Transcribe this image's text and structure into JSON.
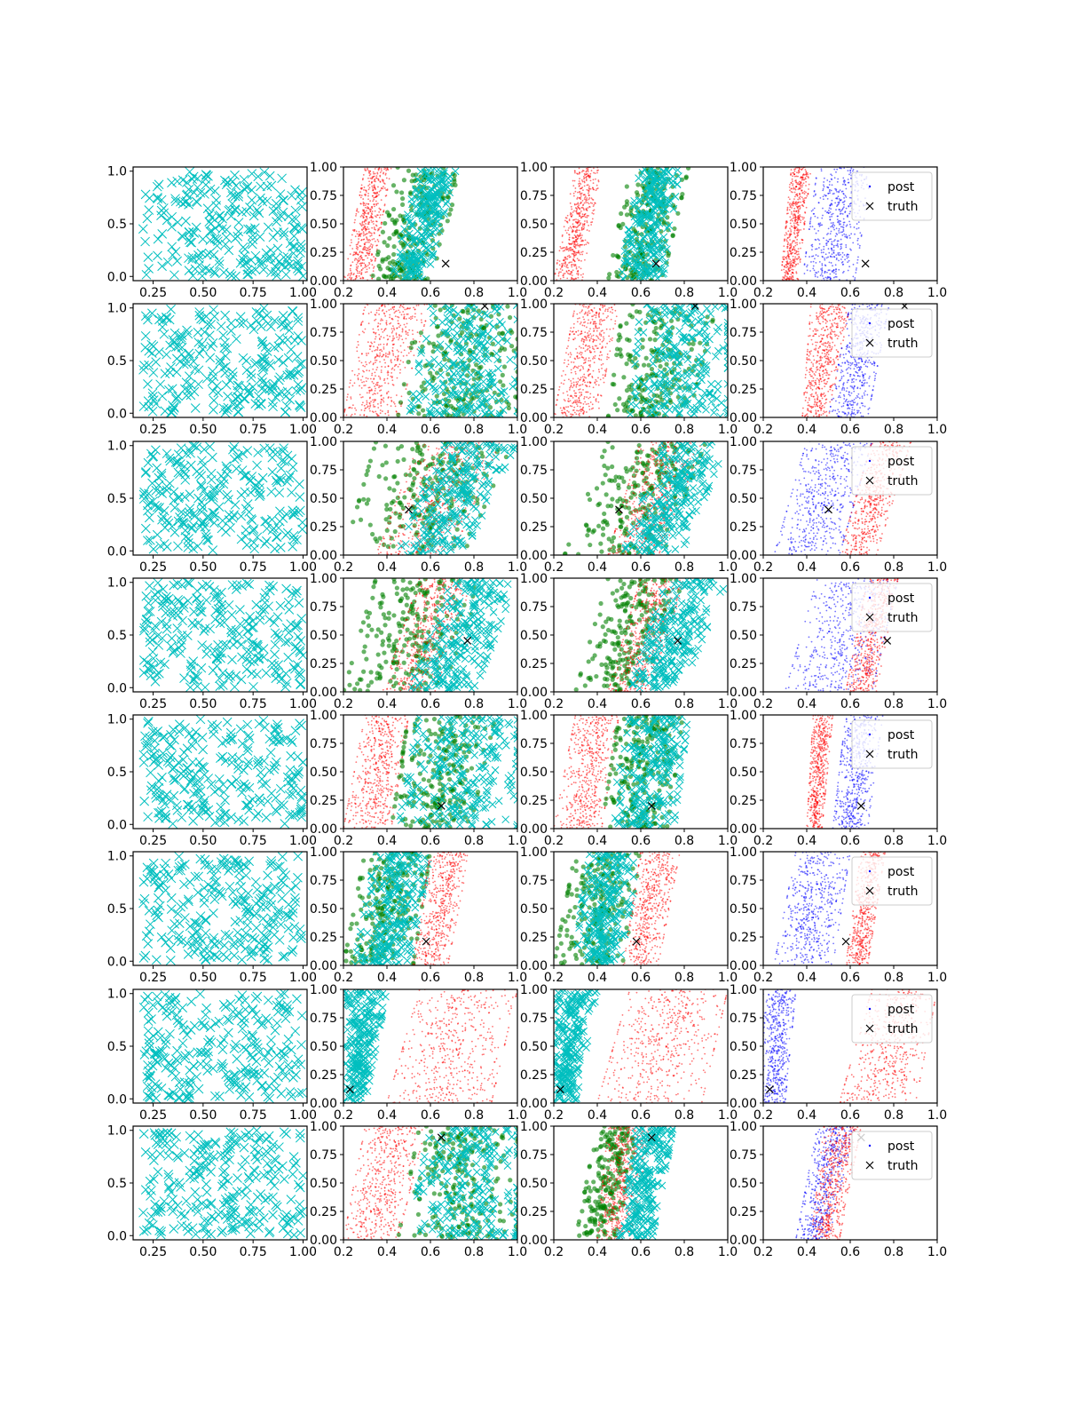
{
  "figure": {
    "rows": 8,
    "cols": 4,
    "colors": {
      "prior_x": "#00bfbf",
      "sample_red": "#ff0000",
      "sample_green": "#008000",
      "post": "#0000ff",
      "truth": "#000000",
      "axes": "#000000",
      "legend_border": "#cccccc"
    }
  },
  "chart_data": {
    "type": "scatter",
    "grid": false,
    "legend": {
      "placement": "upper-right",
      "entries": [
        "post",
        "truth"
      ]
    },
    "columns": [
      {
        "col": 0,
        "xlim": [
          0.15,
          1.02
        ],
        "ylim": [
          -0.04,
          1.04
        ],
        "xticks": [
          0.25,
          0.5,
          0.75,
          1.0
        ],
        "xtick_labels": [
          "0.25",
          "0.50",
          "0.75",
          "1.00"
        ],
        "yticks": [
          0.0,
          0.5,
          1.0
        ],
        "ytick_labels": [
          "0.0",
          "0.5",
          "1.0"
        ],
        "series": [
          {
            "marker": "x",
            "color": "#00bfbf",
            "x_range": [
              0.2,
              1.0
            ],
            "y_range": [
              0.0,
              1.0
            ]
          }
        ]
      },
      {
        "col": 1,
        "xlim": [
          0.2,
          1.0
        ],
        "ylim": [
          0.0,
          1.0
        ],
        "xticks": [
          0.2,
          0.4,
          0.6,
          0.8,
          1.0
        ],
        "xtick_labels": [
          "0.2",
          "0.4",
          "0.6",
          "0.8",
          "1.0"
        ],
        "yticks": [
          0.0,
          0.25,
          0.5,
          0.75,
          1.0
        ],
        "ytick_labels": [
          "0.00",
          "0.25",
          "0.50",
          "0.75",
          "1.00"
        ]
      },
      {
        "col": 2,
        "xlim": [
          0.2,
          1.0
        ],
        "ylim": [
          0.0,
          1.0
        ],
        "xticks": [
          0.2,
          0.4,
          0.6,
          0.8,
          1.0
        ],
        "xtick_labels": [
          "0.2",
          "0.4",
          "0.6",
          "0.8",
          "1.0"
        ],
        "yticks": [
          0.0,
          0.25,
          0.5,
          0.75,
          1.0
        ],
        "ytick_labels": [
          "0.00",
          "0.25",
          "0.50",
          "0.75",
          "1.00"
        ]
      },
      {
        "col": 3,
        "xlim": [
          0.2,
          1.0
        ],
        "ylim": [
          0.0,
          1.0
        ],
        "xticks": [
          0.2,
          0.4,
          0.6,
          0.8,
          1.0
        ],
        "xtick_labels": [
          "0.2",
          "0.4",
          "0.6",
          "0.8",
          "1.0"
        ],
        "yticks": [
          0.0,
          0.25,
          0.5,
          0.75,
          1.0
        ],
        "ytick_labels": [
          "0.00",
          "0.25",
          "0.50",
          "0.75",
          "1.00"
        ]
      }
    ],
    "rows": [
      {
        "truth": [
          0.67,
          0.15
        ],
        "bands": {
          "c1": [
            {
              "color": "red",
              "y0": [
                0.2,
                0.33
              ],
              "y1": [
                0.3,
                0.42
              ]
            },
            {
              "color": "green",
              "y0": [
                0.33,
                0.6
              ],
              "y1": [
                0.45,
                0.75
              ]
            },
            {
              "color": "cyan",
              "y0": [
                0.42,
                0.58
              ],
              "y1": [
                0.55,
                0.72
              ]
            }
          ],
          "c2": [
            {
              "color": "red",
              "y0": [
                0.2,
                0.33
              ],
              "y1": [
                0.3,
                0.42
              ]
            },
            {
              "color": "green",
              "y0": [
                0.45,
                0.7
              ],
              "y1": [
                0.55,
                0.82
              ]
            },
            {
              "color": "cyan",
              "y0": [
                0.5,
                0.7
              ],
              "y1": [
                0.6,
                0.78
              ]
            }
          ],
          "c3": [
            {
              "color": "red",
              "y0": [
                0.28,
                0.36
              ],
              "y1": [
                0.33,
                0.42
              ]
            },
            {
              "color": "blue",
              "y0": [
                0.38,
                0.62
              ],
              "y1": [
                0.45,
                0.7
              ]
            }
          ]
        }
      },
      {
        "truth": [
          0.85,
          0.98
        ],
        "bands": {
          "c1": [
            {
              "color": "red",
              "y0": [
                0.2,
                0.45
              ],
              "y1": [
                0.3,
                0.6
              ]
            },
            {
              "color": "green",
              "y0": [
                0.45,
                1.0
              ],
              "y1": [
                0.55,
                1.0
              ]
            },
            {
              "color": "cyan",
              "y0": [
                0.5,
                1.0
              ],
              "y1": [
                0.6,
                1.0
              ]
            }
          ],
          "c2": [
            {
              "color": "red",
              "y0": [
                0.2,
                0.4
              ],
              "y1": [
                0.3,
                0.5
              ]
            },
            {
              "color": "green",
              "y0": [
                0.45,
                0.82
              ],
              "y1": [
                0.52,
                0.95
              ]
            },
            {
              "color": "cyan",
              "y0": [
                0.55,
                1.0
              ],
              "y1": [
                0.6,
                1.0
              ]
            }
          ],
          "c3": [
            {
              "color": "red",
              "y0": [
                0.38,
                0.5
              ],
              "y1": [
                0.42,
                0.6
              ]
            },
            {
              "color": "blue",
              "y0": [
                0.5,
                0.68
              ],
              "y1": [
                0.6,
                0.78
              ]
            }
          ]
        }
      },
      {
        "truth": [
          0.5,
          0.4
        ],
        "bands": {
          "c1": [
            {
              "color": "green",
              "y0": [
                0.2,
                0.75
              ],
              "y1": [
                0.35,
                0.98
              ]
            },
            {
              "color": "red",
              "y0": [
                0.35,
                0.7
              ],
              "y1": [
                0.55,
                0.92
              ]
            },
            {
              "color": "cyan",
              "y0": [
                0.45,
                0.75
              ],
              "y1": [
                0.65,
                1.0
              ]
            }
          ],
          "c2": [
            {
              "color": "green",
              "y0": [
                0.25,
                0.7
              ],
              "y1": [
                0.45,
                0.9
              ]
            },
            {
              "color": "red",
              "y0": [
                0.45,
                0.7
              ],
              "y1": [
                0.6,
                0.88
              ]
            },
            {
              "color": "cyan",
              "y0": [
                0.52,
                0.78
              ],
              "y1": [
                0.7,
                1.0
              ]
            }
          ],
          "c3": [
            {
              "color": "blue",
              "y0": [
                0.25,
                0.55
              ],
              "y1": [
                0.4,
                0.7
              ]
            },
            {
              "color": "red",
              "y0": [
                0.55,
                0.72
              ],
              "y1": [
                0.7,
                0.88
              ]
            }
          ]
        }
      },
      {
        "truth": [
          0.77,
          0.45
        ],
        "bands": {
          "c1": [
            {
              "color": "green",
              "y0": [
                0.2,
                0.65
              ],
              "y1": [
                0.35,
                0.85
              ]
            },
            {
              "color": "red",
              "y0": [
                0.38,
                0.62
              ],
              "y1": [
                0.55,
                0.8
              ]
            },
            {
              "color": "cyan",
              "y0": [
                0.5,
                0.8
              ],
              "y1": [
                0.7,
                1.0
              ]
            }
          ],
          "c2": [
            {
              "color": "green",
              "y0": [
                0.3,
                0.6
              ],
              "y1": [
                0.45,
                0.8
              ]
            },
            {
              "color": "red",
              "y0": [
                0.45,
                0.65
              ],
              "y1": [
                0.6,
                0.8
              ]
            },
            {
              "color": "cyan",
              "y0": [
                0.55,
                0.78
              ],
              "y1": [
                0.72,
                1.0
              ]
            }
          ],
          "c3": [
            {
              "color": "blue",
              "y0": [
                0.3,
                0.7
              ],
              "y1": [
                0.45,
                0.82
              ]
            },
            {
              "color": "red",
              "y0": [
                0.58,
                0.72
              ],
              "y1": [
                0.68,
                0.82
              ]
            }
          ]
        }
      },
      {
        "truth": [
          0.65,
          0.2
        ],
        "bands": {
          "c1": [
            {
              "color": "red",
              "y0": [
                0.2,
                0.42
              ],
              "y1": [
                0.3,
                0.5
              ]
            },
            {
              "color": "green",
              "y0": [
                0.42,
                0.78
              ],
              "y1": [
                0.5,
                0.9
              ]
            },
            {
              "color": "cyan",
              "y0": [
                0.45,
                1.0
              ],
              "y1": [
                0.55,
                1.0
              ]
            }
          ],
          "c2": [
            {
              "color": "red",
              "y0": [
                0.2,
                0.42
              ],
              "y1": [
                0.3,
                0.5
              ]
            },
            {
              "color": "green",
              "y0": [
                0.42,
                0.72
              ],
              "y1": [
                0.5,
                0.8
              ]
            },
            {
              "color": "cyan",
              "y0": [
                0.45,
                0.75
              ],
              "y1": [
                0.55,
                0.82
              ]
            }
          ],
          "c3": [
            {
              "color": "red",
              "y0": [
                0.4,
                0.47
              ],
              "y1": [
                0.43,
                0.52
              ]
            },
            {
              "color": "blue",
              "y0": [
                0.52,
                0.68
              ],
              "y1": [
                0.58,
                0.75
              ]
            }
          ]
        }
      },
      {
        "truth": [
          0.58,
          0.21
        ],
        "bands": {
          "c1": [
            {
              "color": "green",
              "y0": [
                0.2,
                0.52
              ],
              "y1": [
                0.3,
                0.6
              ]
            },
            {
              "color": "cyan",
              "y0": [
                0.25,
                0.5
              ],
              "y1": [
                0.35,
                0.6
              ]
            },
            {
              "color": "red",
              "y0": [
                0.52,
                0.68
              ],
              "y1": [
                0.6,
                0.78
              ]
            }
          ],
          "c2": [
            {
              "color": "green",
              "y0": [
                0.2,
                0.52
              ],
              "y1": [
                0.3,
                0.6
              ]
            },
            {
              "color": "cyan",
              "y0": [
                0.3,
                0.5
              ],
              "y1": [
                0.35,
                0.6
              ]
            },
            {
              "color": "red",
              "y0": [
                0.52,
                0.68
              ],
              "y1": [
                0.6,
                0.78
              ]
            }
          ],
          "c3": [
            {
              "color": "blue",
              "y0": [
                0.25,
                0.52
              ],
              "y1": [
                0.35,
                0.6
              ]
            },
            {
              "color": "red",
              "y0": [
                0.58,
                0.68
              ],
              "y1": [
                0.65,
                0.76
              ]
            }
          ]
        }
      },
      {
        "truth": [
          0.23,
          0.12
        ],
        "bands": {
          "c1": [
            {
              "color": "cyan",
              "y0": [
                0.2,
                0.3
              ],
              "y1": [
                0.2,
                0.4
              ]
            },
            {
              "color": "red",
              "y0": [
                0.4,
                0.88
              ],
              "y1": [
                0.55,
                1.0
              ]
            }
          ],
          "c2": [
            {
              "color": "cyan",
              "y0": [
                0.2,
                0.3
              ],
              "y1": [
                0.2,
                0.4
              ]
            },
            {
              "color": "red",
              "y0": [
                0.4,
                0.88
              ],
              "y1": [
                0.55,
                1.0
              ]
            }
          ],
          "c3": [
            {
              "color": "blue",
              "y0": [
                0.2,
                0.3
              ],
              "y1": [
                0.2,
                0.35
              ]
            },
            {
              "color": "red",
              "y0": [
                0.55,
                0.9
              ],
              "y1": [
                0.7,
                1.0
              ]
            }
          ]
        }
      },
      {
        "truth": [
          0.65,
          0.9
        ],
        "bands": {
          "c1": [
            {
              "color": "red",
              "y0": [
                0.2,
                0.45
              ],
              "y1": [
                0.3,
                0.58
              ]
            },
            {
              "color": "green",
              "y0": [
                0.45,
                1.0
              ],
              "y1": [
                0.55,
                1.0
              ]
            },
            {
              "color": "cyan",
              "y0": [
                0.5,
                1.0
              ],
              "y1": [
                0.6,
                1.0
              ]
            }
          ],
          "c2": [
            {
              "color": "green",
              "y0": [
                0.3,
                0.48
              ],
              "y1": [
                0.4,
                0.6
              ]
            },
            {
              "color": "red",
              "y0": [
                0.4,
                0.55
              ],
              "y1": [
                0.45,
                0.65
              ]
            },
            {
              "color": "cyan",
              "y0": [
                0.5,
                0.65
              ],
              "y1": [
                0.58,
                0.75
              ]
            }
          ],
          "c3": [
            {
              "color": "blue",
              "y0": [
                0.35,
                0.5
              ],
              "y1": [
                0.45,
                0.62
              ]
            },
            {
              "color": "red",
              "y0": [
                0.42,
                0.55
              ],
              "y1": [
                0.48,
                0.65
              ]
            }
          ]
        }
      }
    ]
  }
}
